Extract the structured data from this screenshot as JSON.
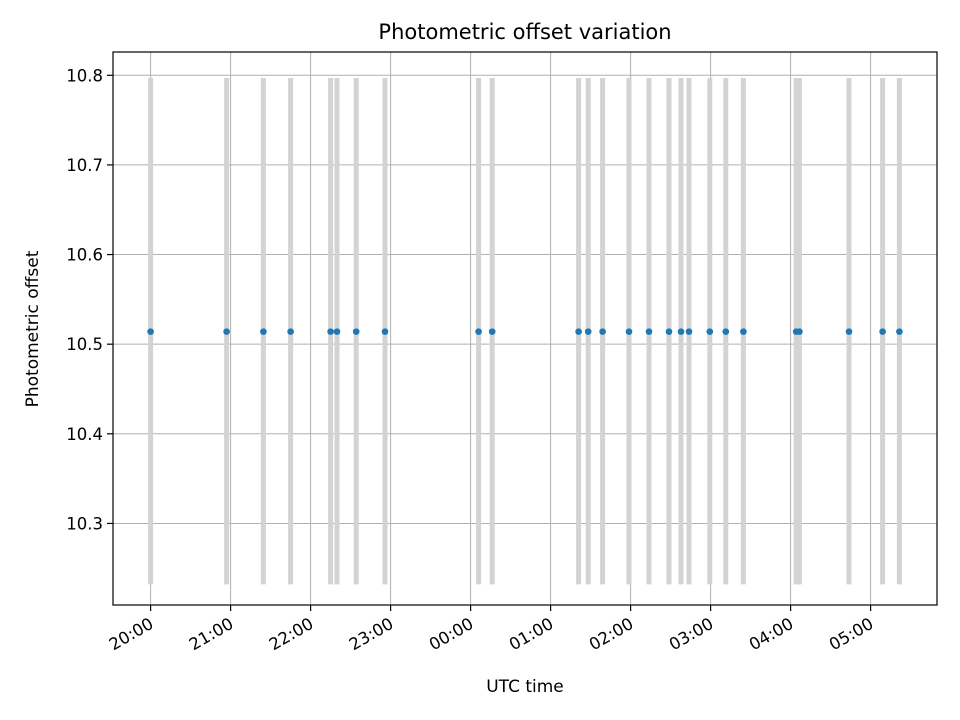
{
  "chart_data": {
    "type": "scatter",
    "title": "Photometric offset variation",
    "xlabel": "UTC time",
    "ylabel": "Photometric offset",
    "x_unit": "hour",
    "x_start_reference": "20:00",
    "xlim": [
      -0.47,
      9.83
    ],
    "ylim": [
      10.209,
      10.826
    ],
    "yticks": [
      10.3,
      10.4,
      10.5,
      10.6,
      10.7,
      10.8
    ],
    "ytick_labels": [
      "10.3",
      "10.4",
      "10.5",
      "10.6",
      "10.7",
      "10.8"
    ],
    "xticks": [
      0,
      1,
      2,
      3,
      4,
      5,
      6,
      7,
      8,
      9
    ],
    "xtick_labels": [
      "20:00",
      "21:00",
      "22:00",
      "23:00",
      "00:00",
      "01:00",
      "02:00",
      "03:00",
      "04:00",
      "05:00"
    ],
    "grid": true,
    "error_color": "#d3d3d3",
    "point_color": "#1f77b4",
    "error_range": [
      10.232,
      10.797
    ],
    "x": [
      0.0,
      0.95,
      1.41,
      1.75,
      2.25,
      2.33,
      2.57,
      2.93,
      4.1,
      4.27,
      5.35,
      5.47,
      5.65,
      5.98,
      6.23,
      6.48,
      6.63,
      6.73,
      6.99,
      7.19,
      7.41,
      8.07,
      8.11,
      8.73,
      9.15,
      9.36
    ],
    "y": [
      10.514,
      10.514,
      10.514,
      10.514,
      10.514,
      10.514,
      10.514,
      10.514,
      10.514,
      10.514,
      10.514,
      10.514,
      10.514,
      10.514,
      10.514,
      10.514,
      10.514,
      10.514,
      10.514,
      10.514,
      10.514,
      10.514,
      10.514,
      10.514,
      10.514,
      10.514
    ]
  }
}
